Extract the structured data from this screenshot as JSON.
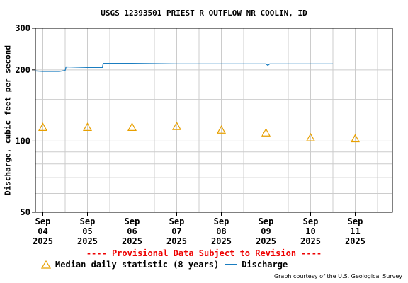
{
  "chart_data": {
    "type": "line",
    "title": "USGS 12393501 PRIEST R OUTFLOW NR COOLIN, ID",
    "ylabel": "Discharge, cubic feet per second",
    "xlabel": "",
    "yscale": "log",
    "ylim": [
      50,
      300
    ],
    "xlim": [
      "2025-09-03 20:00",
      "2025-09-11 20:00"
    ],
    "y_ticks": [
      50,
      100,
      200,
      300
    ],
    "y_minor_gridlines": [
      60,
      70,
      80,
      90,
      150,
      250
    ],
    "x_ticks": [
      {
        "date": "2025-09-04",
        "line1": "Sep",
        "line2": "04",
        "line3": "2025"
      },
      {
        "date": "2025-09-05",
        "line1": "Sep",
        "line2": "05",
        "line3": "2025"
      },
      {
        "date": "2025-09-06",
        "line1": "Sep",
        "line2": "06",
        "line3": "2025"
      },
      {
        "date": "2025-09-07",
        "line1": "Sep",
        "line2": "07",
        "line3": "2025"
      },
      {
        "date": "2025-09-08",
        "line1": "Sep",
        "line2": "08",
        "line3": "2025"
      },
      {
        "date": "2025-09-09",
        "line1": "Sep",
        "line2": "09",
        "line3": "2025"
      },
      {
        "date": "2025-09-10",
        "line1": "Sep",
        "line2": "10",
        "line3": "2025"
      },
      {
        "date": "2025-09-11",
        "line1": "Sep",
        "line2": "11",
        "line3": "2025"
      }
    ],
    "grid": true,
    "series": [
      {
        "name": "Discharge",
        "type": "line",
        "color": "#1a7dc0",
        "points": [
          {
            "x": "2025-09-03 20:00",
            "y": 198
          },
          {
            "x": "2025-09-04 00:00",
            "y": 197
          },
          {
            "x": "2025-09-04 09:00",
            "y": 197
          },
          {
            "x": "2025-09-04 12:00",
            "y": 199
          },
          {
            "x": "2025-09-04 12:30",
            "y": 206
          },
          {
            "x": "2025-09-05 00:00",
            "y": 205
          },
          {
            "x": "2025-09-05 08:00",
            "y": 205
          },
          {
            "x": "2025-09-05 08:30",
            "y": 213
          },
          {
            "x": "2025-09-06 00:00",
            "y": 213
          },
          {
            "x": "2025-09-07 00:00",
            "y": 212
          },
          {
            "x": "2025-09-08 00:00",
            "y": 212
          },
          {
            "x": "2025-09-09 00:00",
            "y": 212
          },
          {
            "x": "2025-09-09 01:00",
            "y": 209
          },
          {
            "x": "2025-09-09 02:00",
            "y": 212
          },
          {
            "x": "2025-09-10 00:00",
            "y": 212
          },
          {
            "x": "2025-09-10 12:00",
            "y": 212
          }
        ]
      },
      {
        "name": "Median daily statistic (8 years)",
        "type": "scatter",
        "marker": "triangle",
        "color": "#e8a000",
        "points": [
          {
            "x": "2025-09-04",
            "y": 114
          },
          {
            "x": "2025-09-05",
            "y": 114
          },
          {
            "x": "2025-09-06",
            "y": 114
          },
          {
            "x": "2025-09-07",
            "y": 115
          },
          {
            "x": "2025-09-08",
            "y": 111
          },
          {
            "x": "2025-09-09",
            "y": 108
          },
          {
            "x": "2025-09-10",
            "y": 103
          },
          {
            "x": "2025-09-11",
            "y": 102
          }
        ]
      }
    ],
    "legend": {
      "placement": "bottom",
      "entries": [
        "Median daily statistic (8 years)",
        "Discharge"
      ]
    }
  },
  "provisional_text": "---- Provisional Data Subject to Revision ----",
  "credit_text": "Graph courtesy of the U.S. Geological Survey",
  "colors": {
    "discharge": "#1a7dc0",
    "median": "#e8a000",
    "provisional": "#ee0000",
    "grid": "#cccccc"
  }
}
